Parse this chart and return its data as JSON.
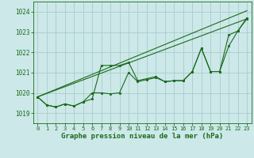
{
  "bg_color": "#cce8e8",
  "grid_color": "#aacccc",
  "line_color": "#1a6b1a",
  "xlabel": "Graphe pression niveau de la mer (hPa)",
  "xlim": [
    -0.5,
    23.5
  ],
  "ylim": [
    1018.5,
    1024.5
  ],
  "yticks": [
    1019,
    1020,
    1021,
    1022,
    1023,
    1024
  ],
  "xticks": [
    0,
    1,
    2,
    3,
    4,
    5,
    6,
    7,
    8,
    9,
    10,
    11,
    12,
    13,
    14,
    15,
    16,
    17,
    18,
    19,
    20,
    21,
    22,
    23
  ],
  "line1_x": [
    0,
    1,
    2,
    3,
    4,
    5,
    6,
    7,
    8,
    9,
    10,
    11,
    12,
    13,
    14,
    15,
    16,
    17,
    18,
    19,
    20,
    21,
    22,
    23
  ],
  "line1_y": [
    1019.8,
    1019.4,
    1019.3,
    1019.45,
    1019.35,
    1019.55,
    1019.7,
    1021.35,
    1021.35,
    1021.35,
    1021.5,
    1020.6,
    1020.7,
    1020.8,
    1020.55,
    1020.6,
    1020.6,
    1021.05,
    1022.2,
    1021.05,
    1021.05,
    1022.3,
    1023.05,
    1023.7
  ],
  "line2_x": [
    0,
    1,
    2,
    3,
    4,
    5,
    6,
    7,
    8,
    9,
    10,
    11,
    12,
    13,
    14,
    15,
    16,
    17,
    18,
    19,
    20,
    21,
    22,
    23
  ],
  "line2_y": [
    1019.8,
    1019.4,
    1019.3,
    1019.45,
    1019.35,
    1019.55,
    1020.0,
    1020.0,
    1019.95,
    1020.0,
    1021.0,
    1020.55,
    1020.65,
    1020.75,
    1020.55,
    1020.6,
    1020.6,
    1021.05,
    1022.2,
    1021.05,
    1021.05,
    1022.85,
    1023.05,
    1023.65
  ],
  "trend1_x": [
    0,
    23
  ],
  "trend1_y": [
    1019.8,
    1024.05
  ],
  "trend2_x": [
    0,
    23
  ],
  "trend2_y": [
    1019.8,
    1023.65
  ]
}
